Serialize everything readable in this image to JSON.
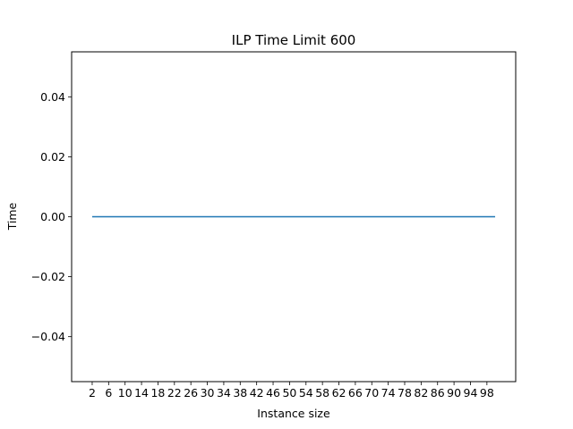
{
  "chart_data": {
    "type": "line",
    "title": "ILP Time Limit 600",
    "xlabel": "Instance size",
    "ylabel": "Time",
    "x": [
      2,
      6,
      10,
      14,
      18,
      22,
      26,
      30,
      34,
      38,
      42,
      46,
      50,
      54,
      58,
      62,
      66,
      70,
      74,
      78,
      82,
      86,
      90,
      94,
      98,
      100
    ],
    "series": [
      {
        "color": "#1f77b4",
        "values": [
          0,
          0,
          0,
          0,
          0,
          0,
          0,
          0,
          0,
          0,
          0,
          0,
          0,
          0,
          0,
          0,
          0,
          0,
          0,
          0,
          0,
          0,
          0,
          0,
          0,
          0
        ]
      }
    ],
    "xticks": [
      "2",
      "6",
      "10",
      "14",
      "18",
      "22",
      "26",
      "30",
      "34",
      "38",
      "42",
      "46",
      "50",
      "54",
      "58",
      "62",
      "66",
      "70",
      "74",
      "78",
      "82",
      "86",
      "90",
      "94",
      "98"
    ],
    "yticks": [
      "−0.04",
      "−0.02",
      "0.00",
      "0.02",
      "0.04"
    ],
    "xlim": [
      -3,
      105
    ],
    "ylim": [
      -0.055,
      0.055
    ],
    "grid": false,
    "legend": "none"
  }
}
